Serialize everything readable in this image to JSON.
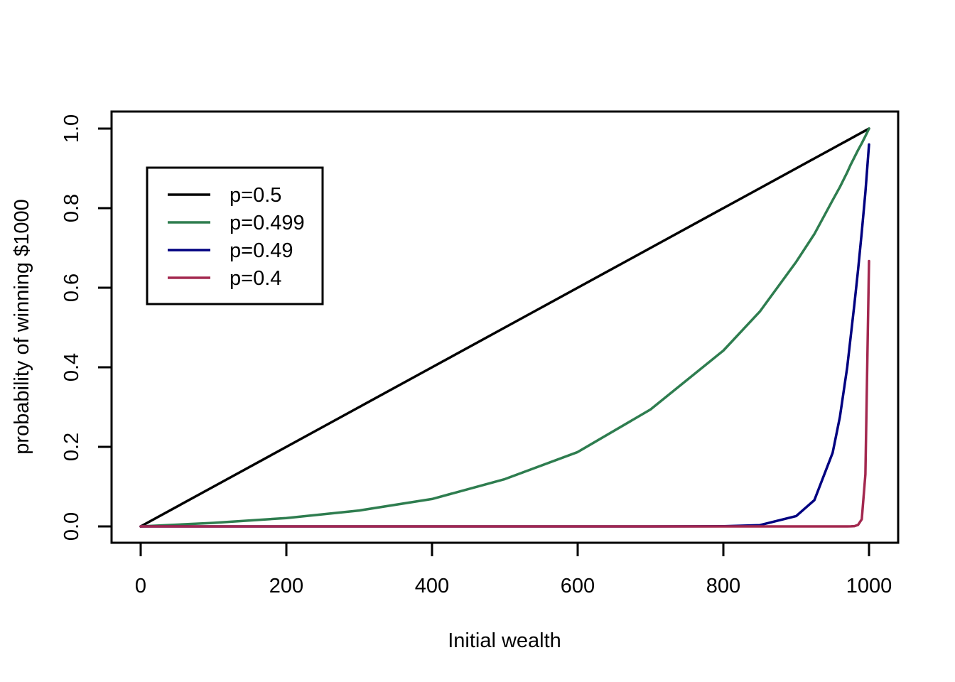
{
  "chart_data": {
    "type": "line",
    "title": "",
    "xlabel": "Initial wealth",
    "ylabel": "probability of winning $1000",
    "xlim": [
      0,
      1000
    ],
    "ylim": [
      0,
      1
    ],
    "xticks": [
      0,
      200,
      400,
      600,
      800,
      1000
    ],
    "yticks": [
      0,
      0.2,
      0.4,
      0.6,
      0.8,
      1
    ],
    "x_tick_labels": [
      "0",
      "200",
      "400",
      "600",
      "800",
      "1000"
    ],
    "y_tick_labels": [
      "0.0",
      "0.2",
      "0.4",
      "0.6",
      "0.8",
      "1.0"
    ],
    "grid": false,
    "legend_position": "top-left",
    "x": [
      0,
      100,
      200,
      300,
      400,
      500,
      600,
      700,
      800,
      850,
      900,
      925,
      950,
      960,
      970,
      975,
      980,
      985,
      990,
      995,
      1000
    ],
    "series": [
      {
        "name": "p=0.5",
        "color": "#000000",
        "values": [
          0,
          0.1,
          0.2,
          0.3,
          0.4,
          0.5,
          0.6,
          0.7,
          0.8,
          0.85,
          0.9,
          0.925,
          0.95,
          0.96,
          0.97,
          0.975,
          0.98,
          0.985,
          0.99,
          0.995,
          1
        ]
      },
      {
        "name": "p=0.499",
        "color": "#2e7d4f",
        "values": [
          0,
          0.009,
          0.021,
          0.04,
          0.069,
          0.119,
          0.187,
          0.294,
          0.442,
          0.54,
          0.665,
          0.735,
          0.82,
          0.853,
          0.89,
          0.91,
          0.928,
          0.946,
          0.963,
          0.981,
          1
        ]
      },
      {
        "name": "p=0.49",
        "color": "#000080",
        "values": [
          0,
          0,
          0,
          0,
          0,
          0,
          0,
          0,
          0.0003,
          0.0033,
          0.026,
          0.066,
          0.185,
          0.275,
          0.4,
          0.48,
          0.56,
          0.645,
          0.74,
          0.84,
          0.96
        ]
      },
      {
        "name": "p=0.4",
        "color": "#a3284f",
        "values": [
          0,
          0,
          0,
          0,
          0,
          0,
          0,
          0,
          0,
          0,
          0,
          0,
          0,
          0,
          0,
          0.0001,
          0.0008,
          0.004,
          0.018,
          0.131,
          0.667
        ]
      }
    ]
  }
}
